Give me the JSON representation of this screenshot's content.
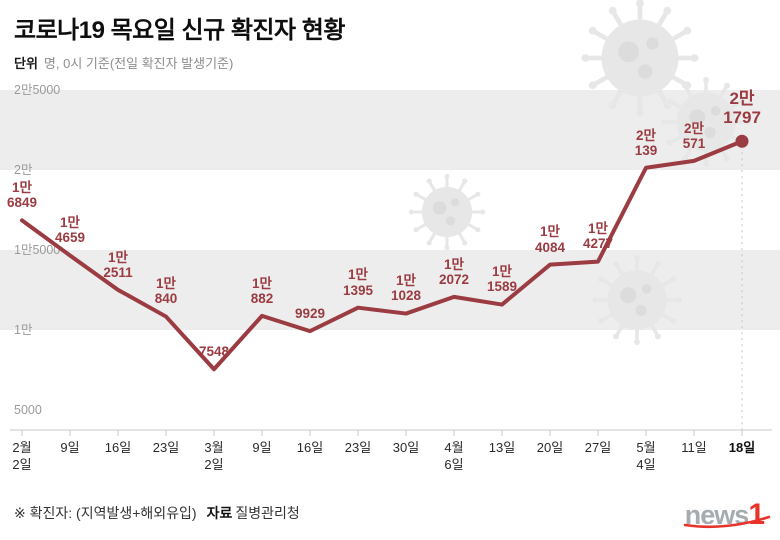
{
  "header": {
    "title": "코로나19 목요일 신규 확진자 현황",
    "unit_label": "단위",
    "unit_desc": "명, 0시 기준(전일 확진자 발생기준)"
  },
  "chart_data": {
    "type": "line",
    "title": "코로나19 목요일 신규 확진자 현황",
    "unit": "명",
    "line_color": "#9b3b42",
    "band_color": "#ededed",
    "ylim": [
      5000,
      25000
    ],
    "grid": "horizontal-bands",
    "legend": "none",
    "y_ticks": [
      {
        "value": 25000,
        "label": "2만5000"
      },
      {
        "value": 20000,
        "label": "2만"
      },
      {
        "value": 15000,
        "label": "1만5000"
      },
      {
        "value": 10000,
        "label": "1만"
      },
      {
        "value": 5000,
        "label": "5000"
      }
    ],
    "points": [
      {
        "x_label": [
          "2월",
          "2일"
        ],
        "value": 16849,
        "label": [
          "1만",
          "6849"
        ]
      },
      {
        "x_label": [
          "9일"
        ],
        "value": 14659,
        "label": [
          "1만",
          "4659"
        ]
      },
      {
        "x_label": [
          "16일"
        ],
        "value": 12511,
        "label": [
          "1만",
          "2511"
        ]
      },
      {
        "x_label": [
          "23일"
        ],
        "value": 10840,
        "label": [
          "1만",
          "840"
        ]
      },
      {
        "x_label": [
          "3월",
          "2일"
        ],
        "value": 7548,
        "label": [
          "7548"
        ]
      },
      {
        "x_label": [
          "9일"
        ],
        "value": 10882,
        "label": [
          "1만",
          "882"
        ]
      },
      {
        "x_label": [
          "16일"
        ],
        "value": 9929,
        "label": [
          "9929"
        ]
      },
      {
        "x_label": [
          "23일"
        ],
        "value": 11395,
        "label": [
          "1만",
          "1395"
        ]
      },
      {
        "x_label": [
          "30일"
        ],
        "value": 11028,
        "label": [
          "1만",
          "1028"
        ]
      },
      {
        "x_label": [
          "4월",
          "6일"
        ],
        "value": 12072,
        "label": [
          "1만",
          "2072"
        ]
      },
      {
        "x_label": [
          "13일"
        ],
        "value": 11589,
        "label": [
          "1만",
          "1589"
        ]
      },
      {
        "x_label": [
          "20일"
        ],
        "value": 14084,
        "label": [
          "1만",
          "4084"
        ]
      },
      {
        "x_label": [
          "27일"
        ],
        "value": 14277,
        "label": [
          "1만",
          "4277"
        ]
      },
      {
        "x_label": [
          "5월",
          "4일"
        ],
        "value": 20139,
        "label": [
          "2만",
          "139"
        ]
      },
      {
        "x_label": [
          "11일"
        ],
        "value": 20571,
        "label": [
          "2만",
          "571"
        ]
      },
      {
        "x_label": [
          "18일"
        ],
        "value": 21797,
        "label": [
          "2만",
          "1797"
        ],
        "final": true
      }
    ]
  },
  "footer": {
    "note": "※ 확진자: (지역발생+해외유입)",
    "source_label": "자료",
    "source_value": "질병관리청"
  },
  "logo": {
    "text": "news",
    "accent": "1"
  },
  "icons": {
    "watermark": "virus-icon"
  }
}
